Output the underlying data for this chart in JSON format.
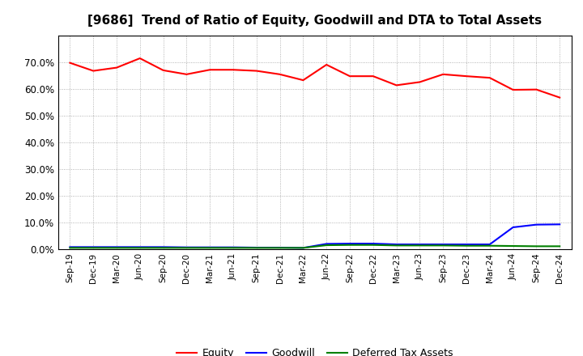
{
  "title": "[9686]  Trend of Ratio of Equity, Goodwill and DTA to Total Assets",
  "x_labels": [
    "Sep-19",
    "Dec-19",
    "Mar-20",
    "Jun-20",
    "Sep-20",
    "Dec-20",
    "Mar-21",
    "Jun-21",
    "Sep-21",
    "Dec-21",
    "Mar-22",
    "Jun-22",
    "Sep-22",
    "Dec-22",
    "Mar-23",
    "Jun-23",
    "Sep-23",
    "Dec-23",
    "Mar-24",
    "Jun-24",
    "Sep-24",
    "Dec-24"
  ],
  "equity": [
    0.698,
    0.668,
    0.68,
    0.715,
    0.67,
    0.655,
    0.672,
    0.672,
    0.668,
    0.655,
    0.633,
    0.691,
    0.648,
    0.648,
    0.614,
    0.626,
    0.655,
    0.648,
    0.642,
    0.597,
    0.598,
    0.568
  ],
  "goodwill": [
    0.008,
    0.008,
    0.008,
    0.008,
    0.008,
    0.007,
    0.007,
    0.007,
    0.006,
    0.006,
    0.005,
    0.02,
    0.021,
    0.021,
    0.018,
    0.018,
    0.018,
    0.018,
    0.018,
    0.082,
    0.092,
    0.093
  ],
  "dta": [
    0.005,
    0.005,
    0.005,
    0.005,
    0.005,
    0.005,
    0.005,
    0.005,
    0.005,
    0.005,
    0.005,
    0.015,
    0.016,
    0.016,
    0.014,
    0.014,
    0.014,
    0.013,
    0.013,
    0.012,
    0.011,
    0.011
  ],
  "equity_color": "#FF0000",
  "goodwill_color": "#0000FF",
  "dta_color": "#008000",
  "ylim": [
    0.0,
    0.8
  ],
  "yticks": [
    0.0,
    0.1,
    0.2,
    0.3,
    0.4,
    0.5,
    0.6,
    0.7
  ],
  "plot_bg_color": "#FFFFFF",
  "fig_bg_color": "#FFFFFF",
  "grid_color": "#888888",
  "legend_equity": "Equity",
  "legend_goodwill": "Goodwill",
  "legend_dta": "Deferred Tax Assets",
  "title_fontsize": 11,
  "tick_fontsize": 7.5,
  "ytick_fontsize": 8.5
}
